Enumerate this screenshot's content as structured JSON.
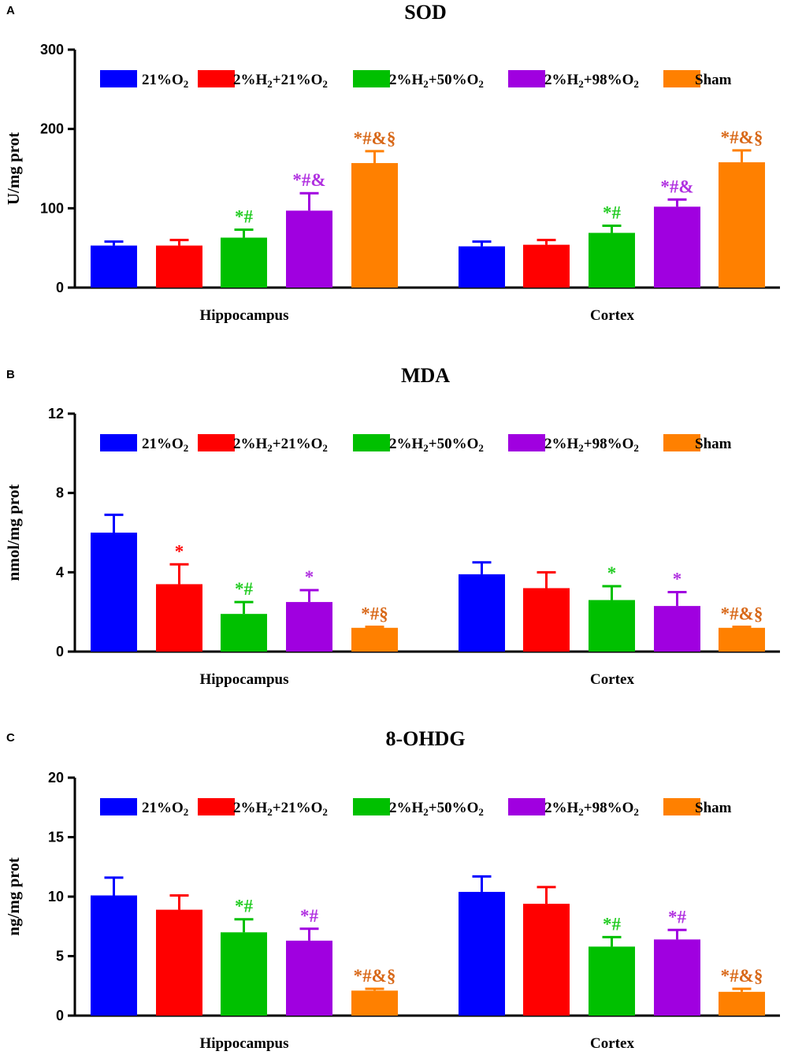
{
  "chart_data": [
    {
      "type": "bar",
      "panel": "A",
      "title": "SOD",
      "xlabel": "",
      "ylabel": "U/mg prot",
      "ylim": [
        0,
        300
      ],
      "yticks": [
        "0",
        "100",
        "200",
        "300"
      ],
      "categories": [
        "Hippocampus",
        "Cortex"
      ],
      "series": [
        {
          "name": "21%O₂",
          "color": "#0000ff",
          "values": [
            53,
            52
          ],
          "errors": [
            5,
            6
          ],
          "annotations": [
            "",
            ""
          ]
        },
        {
          "name": "2%H₂+21%O₂",
          "color": "#ff0000",
          "values": [
            53,
            54
          ],
          "errors": [
            7,
            6
          ],
          "annotations": [
            "",
            ""
          ]
        },
        {
          "name": "2%H₂+50%O₂",
          "color": "#00c000",
          "values": [
            63,
            69
          ],
          "errors": [
            10,
            9
          ],
          "annotations": [
            "*#",
            "*#"
          ]
        },
        {
          "name": "2%H₂+98%O₂",
          "color": "#a000e0",
          "values": [
            97,
            102
          ],
          "errors": [
            22,
            9
          ],
          "annotations": [
            "*#&",
            "*#&"
          ]
        },
        {
          "name": "Sham",
          "color": "#ff8000",
          "values": [
            157,
            158
          ],
          "errors": [
            15,
            15
          ],
          "annotations": [
            "*#&§",
            "*#&§"
          ]
        }
      ],
      "annotation_colors": [
        "#0000ff",
        "#ff0000",
        "#22cc22",
        "#b030e0",
        "#d86818"
      ]
    },
    {
      "type": "bar",
      "panel": "B",
      "title": "MDA",
      "xlabel": "",
      "ylabel": "nmol/mg prot",
      "ylim": [
        0,
        12
      ],
      "yticks": [
        "0",
        "4",
        "8",
        "12"
      ],
      "categories": [
        "Hippocampus",
        "Cortex"
      ],
      "series": [
        {
          "name": "21%O₂",
          "color": "#0000ff",
          "values": [
            6.0,
            3.9
          ],
          "errors": [
            0.9,
            0.6
          ],
          "annotations": [
            "",
            ""
          ]
        },
        {
          "name": "2%H₂+21%O₂",
          "color": "#ff0000",
          "values": [
            3.4,
            3.2
          ],
          "errors": [
            1.0,
            0.8
          ],
          "annotations": [
            "*",
            ""
          ]
        },
        {
          "name": "2%H₂+50%O₂",
          "color": "#00c000",
          "values": [
            1.9,
            2.6
          ],
          "errors": [
            0.6,
            0.7
          ],
          "annotations": [
            "*#",
            "*"
          ]
        },
        {
          "name": "2%H₂+98%O₂",
          "color": "#a000e0",
          "values": [
            2.5,
            2.3
          ],
          "errors": [
            0.6,
            0.7
          ],
          "annotations": [
            "*",
            "*"
          ]
        },
        {
          "name": "Sham",
          "color": "#ff8000",
          "values": [
            1.2,
            1.2
          ],
          "errors": [
            0.05,
            0.05
          ],
          "annotations": [
            "*#§",
            "*#&§"
          ]
        }
      ],
      "annotation_colors": [
        "#0000ff",
        "#ff0000",
        "#22cc22",
        "#b030e0",
        "#d86818"
      ]
    },
    {
      "type": "bar",
      "panel": "C",
      "title": "8-OHDG",
      "xlabel": "",
      "ylabel": "ng/mg prot",
      "ylim": [
        0,
        20
      ],
      "yticks": [
        "0",
        "5",
        "10",
        "15",
        "20"
      ],
      "categories": [
        "Hippocampus",
        "Cortex"
      ],
      "series": [
        {
          "name": "21%O₂",
          "color": "#0000ff",
          "values": [
            10.1,
            10.4
          ],
          "errors": [
            1.5,
            1.3
          ],
          "annotations": [
            "",
            ""
          ]
        },
        {
          "name": "2%H₂+21%O₂",
          "color": "#ff0000",
          "values": [
            8.9,
            9.4
          ],
          "errors": [
            1.2,
            1.4
          ],
          "annotations": [
            "",
            ""
          ]
        },
        {
          "name": "2%H₂+50%O₂",
          "color": "#00c000",
          "values": [
            7.0,
            5.8
          ],
          "errors": [
            1.1,
            0.8
          ],
          "annotations": [
            "*#",
            "*#"
          ]
        },
        {
          "name": "2%H₂+98%O₂",
          "color": "#a000e0",
          "values": [
            6.3,
            6.4
          ],
          "errors": [
            1.0,
            0.8
          ],
          "annotations": [
            "*#",
            "*#"
          ]
        },
        {
          "name": "Sham",
          "color": "#ff8000",
          "values": [
            2.1,
            2.0
          ],
          "errors": [
            0.15,
            0.25
          ],
          "annotations": [
            "*#&§",
            "*#&§"
          ]
        }
      ],
      "annotation_colors": [
        "#0000ff",
        "#ff0000",
        "#22cc22",
        "#b030e0",
        "#d86818"
      ]
    }
  ]
}
